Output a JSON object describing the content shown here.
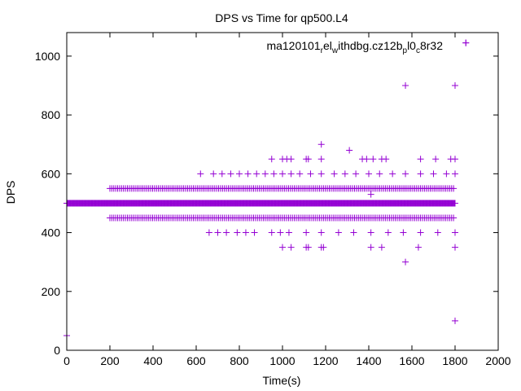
{
  "chart_data": {
    "type": "scatter",
    "title": "DPS vs Time for qp500.L4",
    "xlabel": "Time(s)",
    "ylabel": "DPS",
    "xlim": [
      0,
      2000
    ],
    "ylim": [
      0,
      1080
    ],
    "xticks": [
      0,
      200,
      400,
      600,
      800,
      1000,
      1200,
      1400,
      1600,
      1800,
      2000
    ],
    "yticks": [
      0,
      200,
      400,
      600,
      800,
      1000
    ],
    "grid": false,
    "legend_position": "top-right",
    "series": [
      {
        "name": "ma120101_rel_withdbg.cz12b_pl0_c8r32",
        "color": "#9400d3",
        "marker": "plus",
        "bands": [
          {
            "y": 500,
            "x_start": 0,
            "x_end": 1800,
            "x_step": 3
          },
          {
            "y": 550,
            "x_start": 200,
            "x_end": 1800,
            "x_step": 9
          },
          {
            "y": 450,
            "x_start": 200,
            "x_end": 1800,
            "x_step": 9
          }
        ],
        "points": [
          {
            "x": 0,
            "y": 50
          },
          {
            "x": 620,
            "y": 600
          },
          {
            "x": 680,
            "y": 600
          },
          {
            "x": 720,
            "y": 600
          },
          {
            "x": 760,
            "y": 600
          },
          {
            "x": 800,
            "y": 600
          },
          {
            "x": 840,
            "y": 600
          },
          {
            "x": 880,
            "y": 600
          },
          {
            "x": 920,
            "y": 600
          },
          {
            "x": 960,
            "y": 600
          },
          {
            "x": 1000,
            "y": 600
          },
          {
            "x": 1040,
            "y": 600
          },
          {
            "x": 1080,
            "y": 600
          },
          {
            "x": 1130,
            "y": 600
          },
          {
            "x": 1180,
            "y": 600
          },
          {
            "x": 1240,
            "y": 600
          },
          {
            "x": 1290,
            "y": 600
          },
          {
            "x": 1340,
            "y": 600
          },
          {
            "x": 1400,
            "y": 600
          },
          {
            "x": 1450,
            "y": 600
          },
          {
            "x": 1510,
            "y": 600
          },
          {
            "x": 1570,
            "y": 600
          },
          {
            "x": 1640,
            "y": 600
          },
          {
            "x": 1700,
            "y": 600
          },
          {
            "x": 1760,
            "y": 600
          },
          {
            "x": 1800,
            "y": 600
          },
          {
            "x": 660,
            "y": 400
          },
          {
            "x": 700,
            "y": 400
          },
          {
            "x": 740,
            "y": 400
          },
          {
            "x": 790,
            "y": 400
          },
          {
            "x": 830,
            "y": 400
          },
          {
            "x": 870,
            "y": 400
          },
          {
            "x": 950,
            "y": 400
          },
          {
            "x": 990,
            "y": 400
          },
          {
            "x": 1030,
            "y": 400
          },
          {
            "x": 1110,
            "y": 400
          },
          {
            "x": 1180,
            "y": 400
          },
          {
            "x": 1260,
            "y": 400
          },
          {
            "x": 1330,
            "y": 400
          },
          {
            "x": 1410,
            "y": 400
          },
          {
            "x": 1490,
            "y": 400
          },
          {
            "x": 1560,
            "y": 400
          },
          {
            "x": 1640,
            "y": 400
          },
          {
            "x": 1720,
            "y": 400
          },
          {
            "x": 1800,
            "y": 400
          },
          {
            "x": 950,
            "y": 650
          },
          {
            "x": 1000,
            "y": 650
          },
          {
            "x": 1020,
            "y": 650
          },
          {
            "x": 1040,
            "y": 650
          },
          {
            "x": 1110,
            "y": 650
          },
          {
            "x": 1120,
            "y": 650
          },
          {
            "x": 1180,
            "y": 650
          },
          {
            "x": 1370,
            "y": 650
          },
          {
            "x": 1390,
            "y": 650
          },
          {
            "x": 1420,
            "y": 650
          },
          {
            "x": 1460,
            "y": 650
          },
          {
            "x": 1480,
            "y": 650
          },
          {
            "x": 1640,
            "y": 650
          },
          {
            "x": 1710,
            "y": 650
          },
          {
            "x": 1780,
            "y": 650
          },
          {
            "x": 1800,
            "y": 650
          },
          {
            "x": 1180,
            "y": 700
          },
          {
            "x": 1310,
            "y": 680
          },
          {
            "x": 1000,
            "y": 350
          },
          {
            "x": 1040,
            "y": 350
          },
          {
            "x": 1110,
            "y": 350
          },
          {
            "x": 1120,
            "y": 350
          },
          {
            "x": 1180,
            "y": 350
          },
          {
            "x": 1190,
            "y": 350
          },
          {
            "x": 1410,
            "y": 350
          },
          {
            "x": 1460,
            "y": 350
          },
          {
            "x": 1630,
            "y": 350
          },
          {
            "x": 1800,
            "y": 350
          },
          {
            "x": 1410,
            "y": 530
          },
          {
            "x": 1570,
            "y": 300
          },
          {
            "x": 1570,
            "y": 900
          },
          {
            "x": 1800,
            "y": 900
          },
          {
            "x": 1850,
            "y": 1045
          },
          {
            "x": 1800,
            "y": 100
          }
        ]
      }
    ]
  }
}
